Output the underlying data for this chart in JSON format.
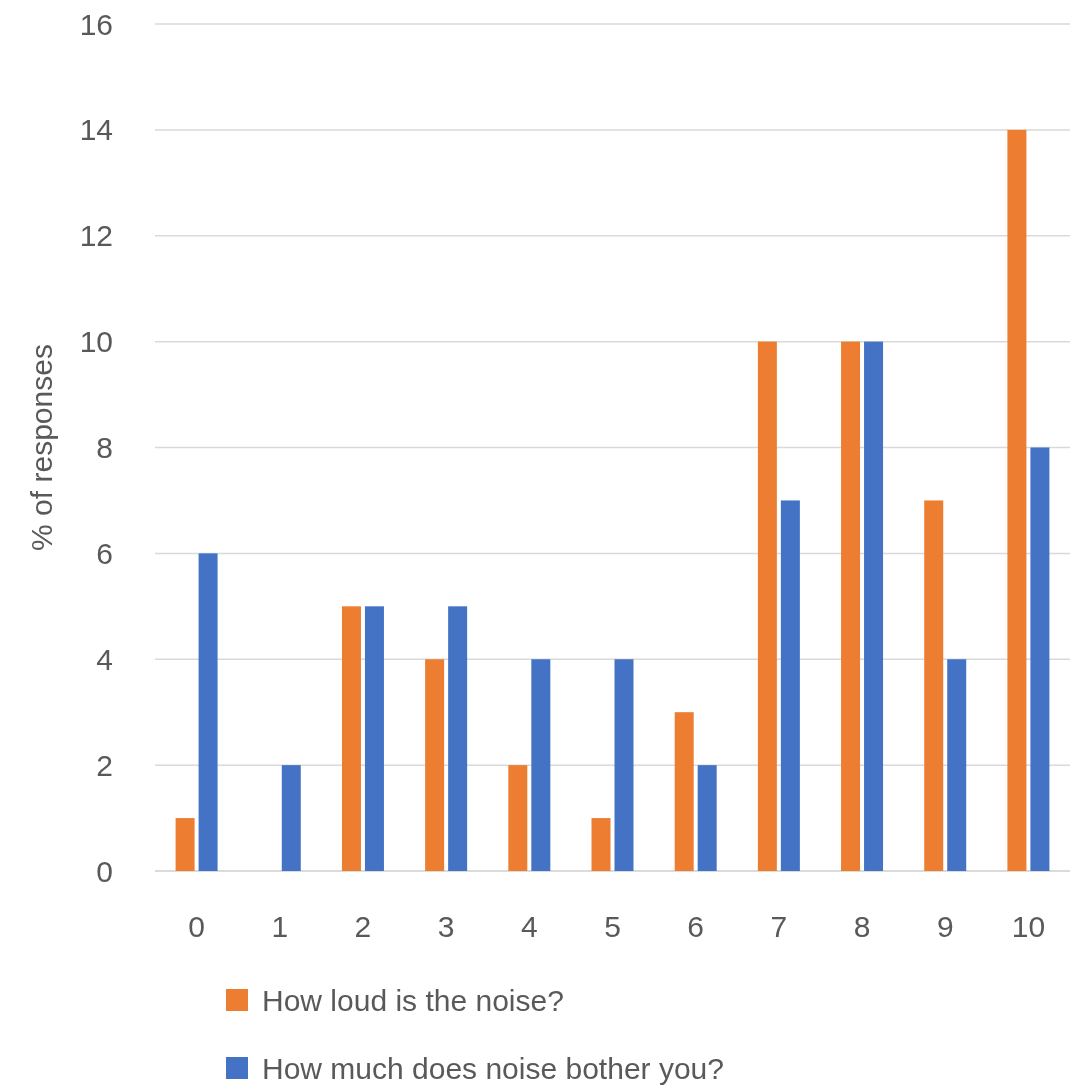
{
  "chart_data": {
    "type": "bar",
    "ylabel": "% of responses",
    "categories": [
      "0",
      "1",
      "2",
      "3",
      "4",
      "5",
      "6",
      "7",
      "8",
      "9",
      "10"
    ],
    "series": [
      {
        "name": "How loud is the noise?",
        "color": "#ed7d31",
        "values": [
          1,
          0,
          5,
          4,
          2,
          1,
          3,
          10,
          10,
          7,
          14
        ]
      },
      {
        "name": "How much does noise bother you?",
        "color": "#4472c4",
        "values": [
          6,
          2,
          5,
          5,
          4,
          4,
          2,
          7,
          10,
          4,
          8
        ]
      }
    ],
    "ylim": [
      0,
      16
    ],
    "yticks": [
      0,
      2,
      4,
      6,
      8,
      10,
      12,
      14,
      16
    ],
    "grid": "y",
    "legend": "bottom"
  }
}
